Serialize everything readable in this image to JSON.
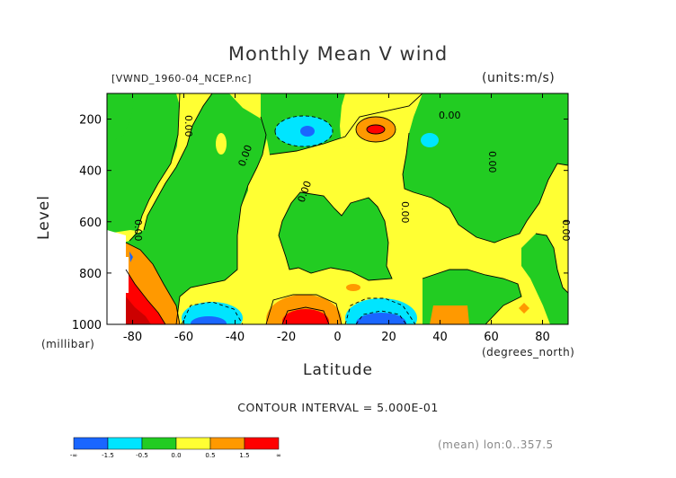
{
  "chart_data": {
    "type": "heatmap",
    "title": "Monthly Mean V wind",
    "file_label": "[VWND_1960-04_NCEP.nc]",
    "units_label": "(units:m/s)",
    "xlabel": "Latitude",
    "x_units": "(degrees_north)",
    "ylabel": "Level",
    "y_units": "(millibar)",
    "x_ticks": [
      "-80",
      "-60",
      "-40",
      "-20",
      "0",
      "20",
      "40",
      "60",
      "80"
    ],
    "y_ticks": [
      "200",
      "400",
      "600",
      "800",
      "1000"
    ],
    "xlim": [
      -90,
      90
    ],
    "ylim": [
      1000,
      100
    ],
    "contour_interval_text": "CONTOUR INTERVAL = 5.000E-01",
    "contour_labels": [
      "0.00",
      "0.00",
      "0.00",
      "0.00",
      "0.00",
      "0.00",
      "0.00",
      "0.00"
    ],
    "colorbar": {
      "labels": [
        "-∞",
        "-1.5",
        "-0.5",
        "0.0",
        "0.5",
        "1.5",
        "∞"
      ],
      "colors": [
        "#1a66ff",
        "#00e5ff",
        "#22cc22",
        "#ffff33",
        "#ff9900",
        "#ff0000"
      ]
    },
    "footer": "(mean) lon:0..357.5"
  }
}
